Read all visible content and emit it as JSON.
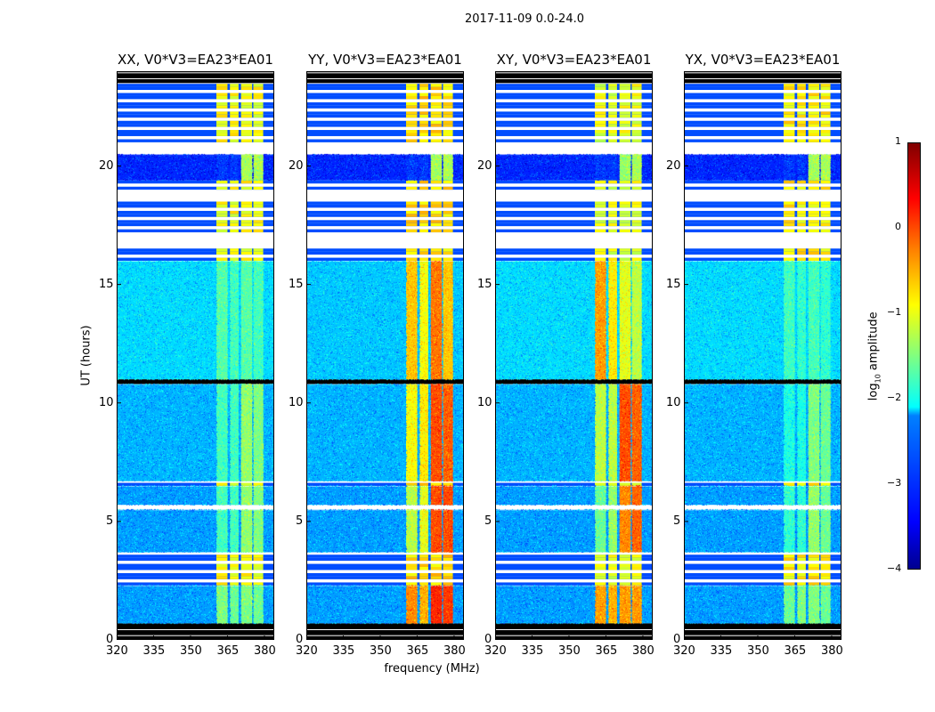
{
  "chart_data": {
    "type": "heatmap",
    "title": "2017-11-09 0.0-24.0",
    "xlabel": "frequency (MHz)",
    "ylabel": "UT (hours)",
    "xlim": [
      320,
      384
    ],
    "ylim": [
      0,
      24
    ],
    "xticks": [
      "320",
      "335",
      "350",
      "365",
      "380"
    ],
    "xtick_values": [
      320,
      335,
      350,
      365,
      380
    ],
    "yticks": [
      "0",
      "5",
      "10",
      "15",
      "20"
    ],
    "ytick_values": [
      0,
      5,
      10,
      15,
      20
    ],
    "colorbar": {
      "label_main": "log",
      "label_sub": "10",
      "label_rest": " amplitude",
      "range": [
        -4,
        1
      ],
      "ticks": [
        "1",
        "0",
        "−1",
        "−2",
        "−3",
        "−4"
      ],
      "tick_values": [
        1,
        0,
        -1,
        -2,
        -3,
        -4
      ],
      "colormap": "jet"
    },
    "freq_blocks": [
      [
        320,
        384
      ],
      [
        360.5,
        365
      ],
      [
        366,
        369.5
      ],
      [
        370.5,
        375
      ],
      [
        375.5,
        379.5
      ]
    ],
    "time_segments": [
      [
        0,
        0.7,
        "flag",
        ""
      ],
      [
        0.7,
        2.3,
        "data",
        "A"
      ],
      [
        2.3,
        3.7,
        "stripe",
        ""
      ],
      [
        3.7,
        5.5,
        "data",
        "B"
      ],
      [
        5.5,
        5.7,
        "gap",
        ""
      ],
      [
        5.7,
        6.5,
        "data",
        "B"
      ],
      [
        6.5,
        6.7,
        "stripe",
        ""
      ],
      [
        6.7,
        10.8,
        "data",
        "C"
      ],
      [
        10.8,
        11,
        "flag",
        ""
      ],
      [
        11,
        16,
        "data",
        "D"
      ],
      [
        16,
        16.6,
        "stripe",
        ""
      ],
      [
        16.6,
        17.2,
        "gap",
        ""
      ],
      [
        17.2,
        18.5,
        "stripe",
        ""
      ],
      [
        18.5,
        19,
        "gap",
        ""
      ],
      [
        19,
        19.4,
        "stripe",
        ""
      ],
      [
        19.4,
        20.5,
        "data",
        "E"
      ],
      [
        20.5,
        21,
        "gap",
        ""
      ],
      [
        21,
        23.5,
        "stripe",
        ""
      ],
      [
        23.5,
        24,
        "flag",
        ""
      ]
    ],
    "panels": [
      {
        "title": "XX, V0*V3=EA23*EA01",
        "stripe_level": -0.9,
        "levels": {
          "A": [
            -2.6,
            -1.5,
            -1.6,
            -1.5,
            -1.6
          ],
          "B": [
            -2.6,
            -1.8,
            -1.8,
            -1.4,
            -1.5
          ],
          "C": [
            -2.5,
            -1.8,
            -1.8,
            -1.4,
            -1.5
          ],
          "D": [
            -2.3,
            -1.7,
            -1.8,
            -1.7,
            -1.8
          ],
          "E": [
            -3.2,
            -3.1,
            -3.1,
            -1.3,
            -1.3
          ]
        }
      },
      {
        "title": "YY, V0*V3=EA23*EA01",
        "stripe_level": -0.7,
        "levels": {
          "A": [
            -2.6,
            -0.3,
            -0.5,
            0.2,
            0.1
          ],
          "B": [
            -2.6,
            -1.2,
            -1.0,
            0.0,
            0.0
          ],
          "C": [
            -2.5,
            -0.9,
            -0.8,
            0.0,
            -0.1
          ],
          "D": [
            -2.4,
            -0.6,
            -0.9,
            -0.2,
            -0.6
          ],
          "E": [
            -3.2,
            -3.1,
            -3.1,
            -1.3,
            -1.3
          ]
        }
      },
      {
        "title": "XY, V0*V3=EA23*EA01",
        "stripe_level": -1.0,
        "levels": {
          "A": [
            -2.6,
            -0.4,
            -0.5,
            -0.4,
            -0.4
          ],
          "B": [
            -2.6,
            -1.6,
            -1.4,
            -0.3,
            -0.1
          ],
          "C": [
            -2.5,
            -1.2,
            -1.2,
            0.0,
            -0.1
          ],
          "D": [
            -2.3,
            -0.4,
            -0.8,
            -1.0,
            -1.2
          ],
          "E": [
            -3.2,
            -3.1,
            -3.1,
            -1.4,
            -1.3
          ]
        }
      },
      {
        "title": "YX, V0*V3=EA23*EA01",
        "stripe_level": -0.8,
        "levels": {
          "A": [
            -2.6,
            -1.6,
            -1.5,
            -1.5,
            -1.6
          ],
          "B": [
            -2.6,
            -1.9,
            -1.9,
            -1.4,
            -1.6
          ],
          "C": [
            -2.5,
            -2.0,
            -2.0,
            -1.5,
            -1.6
          ],
          "D": [
            -2.3,
            -1.8,
            -1.9,
            -1.8,
            -1.9
          ],
          "E": [
            -3.2,
            -3.1,
            -3.1,
            -1.3,
            -1.3
          ]
        }
      }
    ]
  }
}
